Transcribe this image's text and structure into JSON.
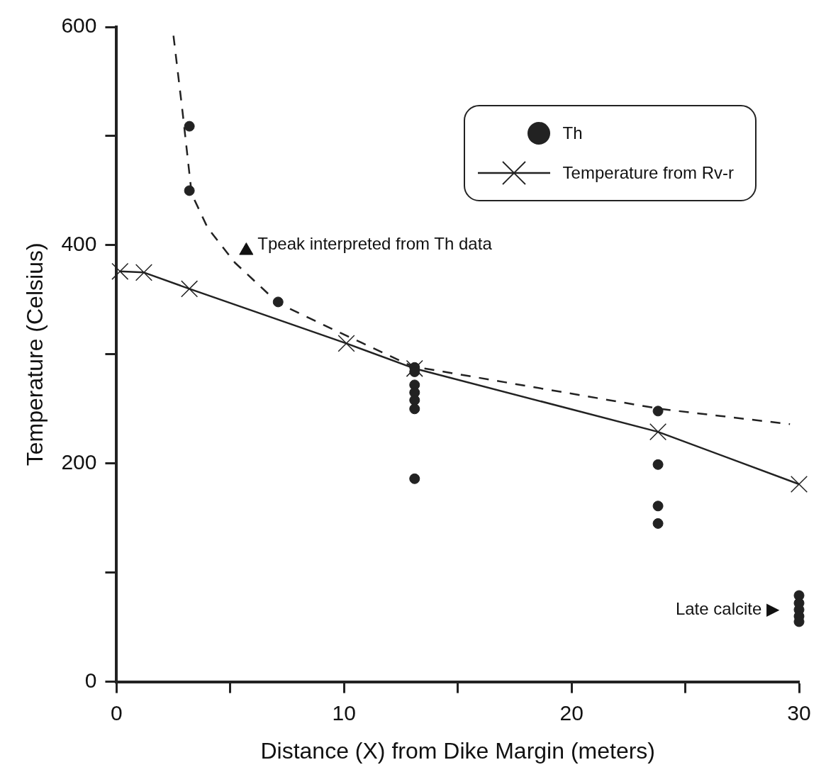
{
  "chart_data": {
    "type": "scatter",
    "xlabel": "Distance (X) from Dike Margin (meters)",
    "ylabel": "Temperature (Celsius)",
    "xlim": [
      0,
      30
    ],
    "ylim": [
      0,
      600
    ],
    "xticks": [
      0,
      {
        "value": 5,
        "label": null
      },
      10,
      {
        "value": 15,
        "label": null
      },
      20,
      {
        "value": 25,
        "label": null
      },
      30
    ],
    "yticks": [
      0,
      {
        "value": 100,
        "label": null
      },
      200,
      {
        "value": 300,
        "label": null
      },
      400,
      {
        "value": 500,
        "label": null
      },
      600
    ],
    "grid": false,
    "legend": "top right",
    "series": [
      {
        "type": "line",
        "color": "#222222",
        "line_style": "dashed",
        "marker": "none",
        "x": [
          2.5,
          2.9,
          3.3,
          4.0,
          5.2,
          7.1,
          9.6,
          13.0,
          23.9,
          29.6
        ],
        "values": [
          592,
          522,
          447,
          416,
          384,
          347,
          322,
          289,
          250,
          236
        ]
      },
      {
        "type": "scatter",
        "name": "Th",
        "color": "#222222",
        "marker": "circle",
        "x": [
          3.2,
          3.2,
          7.1,
          13.1,
          13.1,
          13.1,
          13.1,
          13.1,
          13.1,
          13.1,
          23.8,
          23.8,
          23.8,
          23.8,
          30,
          30,
          30,
          30,
          30
        ],
        "values": [
          509,
          450,
          348,
          288,
          284,
          272,
          265,
          258,
          250,
          186,
          248,
          199,
          161,
          145,
          79,
          72,
          66,
          60,
          55
        ]
      },
      {
        "type": "line",
        "name": "Temperature from Rv-r",
        "color": "#222222",
        "line_style": "solid",
        "marker": "cross",
        "x": [
          0.15,
          1.2,
          3.2,
          10.1,
          13.1,
          23.8,
          30
        ],
        "values": [
          376,
          375,
          360,
          310,
          287,
          229,
          181
        ]
      },
      {
        "type": "scatter",
        "color": "#111111",
        "marker": "triangle",
        "x": [
          5.7
        ],
        "values": [
          395
        ]
      }
    ],
    "annotations": [
      {
        "text": "Tpeak interpreted from Th data",
        "x": 5.7,
        "y": 395
      },
      {
        "text": "Late calcite ▶",
        "x": 30,
        "y": 66
      }
    ]
  }
}
